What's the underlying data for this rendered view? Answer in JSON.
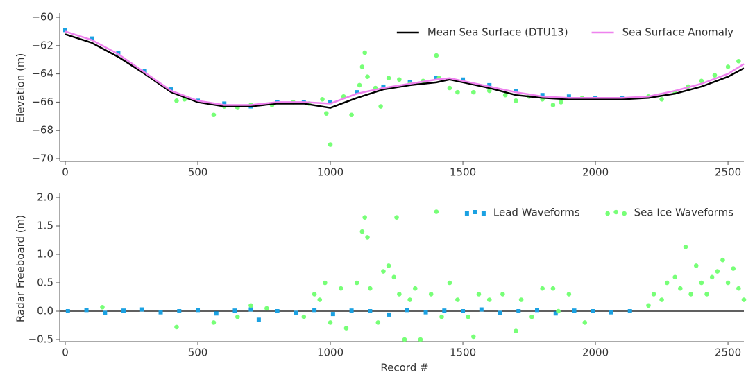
{
  "chart_data": [
    {
      "type": "combo",
      "ylabel": "Elevation (m)",
      "xlim": [
        0,
        2560
      ],
      "xticks": [
        0,
        500,
        1000,
        1500,
        2000,
        2500
      ],
      "ylim": [
        -70,
        -60
      ],
      "yticks": [
        {
          "value": -70,
          "label": "−70"
        },
        {
          "value": -68,
          "label": "−68"
        },
        {
          "value": -66,
          "label": "−66"
        },
        {
          "value": -64,
          "label": "−64"
        },
        {
          "value": -62,
          "label": "−62"
        },
        {
          "value": -60,
          "label": "−60"
        }
      ],
      "legend": "upper right",
      "series": [
        {
          "type": "scatter",
          "marker": "square",
          "color": "#1ba1e2",
          "x": [
            0,
            100,
            200,
            300,
            400,
            500,
            600,
            700,
            800,
            900,
            1000,
            1100,
            1200,
            1300,
            1400,
            1500,
            1600,
            1700,
            1800,
            1900,
            2000,
            2100
          ],
          "values": [
            -60.9,
            -61.5,
            -62.5,
            -63.8,
            -65.1,
            -65.9,
            -66.1,
            -66.3,
            -66.0,
            -66.0,
            -66.0,
            -65.3,
            -64.9,
            -64.6,
            -64.3,
            -64.4,
            -64.8,
            -65.2,
            -65.5,
            -65.6,
            -65.7,
            -65.7
          ]
        },
        {
          "type": "scatter",
          "marker": "circle",
          "color": "#77ff77",
          "x": [
            420,
            450,
            560,
            600,
            650,
            700,
            780,
            860,
            920,
            970,
            985,
            1000,
            1050,
            1080,
            1110,
            1120,
            1130,
            1140,
            1170,
            1190,
            1220,
            1260,
            1300,
            1350,
            1400,
            1410,
            1450,
            1480,
            1540,
            1600,
            1660,
            1700,
            1750,
            1800,
            1840,
            1870,
            1950,
            2200,
            2250,
            2300,
            2350,
            2400,
            2450,
            2500,
            2540
          ],
          "values": [
            -65.9,
            -65.8,
            -66.9,
            -66.3,
            -66.4,
            -66.2,
            -66.2,
            -66.0,
            -66.1,
            -65.8,
            -66.8,
            -69.0,
            -65.6,
            -66.9,
            -64.8,
            -63.5,
            -62.5,
            -64.2,
            -65.0,
            -66.3,
            -64.3,
            -64.4,
            -64.7,
            -64.5,
            -62.7,
            -64.3,
            -65.0,
            -65.3,
            -65.3,
            -65.2,
            -65.5,
            -65.9,
            -65.6,
            -65.8,
            -66.2,
            -66.0,
            -65.7,
            -65.6,
            -65.8,
            -65.3,
            -64.9,
            -64.5,
            -64.1,
            -63.5,
            -63.1
          ]
        },
        {
          "type": "line",
          "name": "Mean Sea Surface (DTU13)",
          "color": "#000000",
          "x": [
            0,
            100,
            200,
            300,
            400,
            500,
            600,
            700,
            800,
            900,
            1000,
            1100,
            1200,
            1300,
            1400,
            1450,
            1500,
            1600,
            1700,
            1800,
            1900,
            2000,
            2100,
            2200,
            2300,
            2400,
            2500,
            2560
          ],
          "values": [
            -61.2,
            -61.8,
            -62.8,
            -64.0,
            -65.3,
            -66.0,
            -66.3,
            -66.3,
            -66.1,
            -66.1,
            -66.4,
            -65.7,
            -65.1,
            -64.8,
            -64.6,
            -64.4,
            -64.6,
            -65.0,
            -65.5,
            -65.7,
            -65.8,
            -65.8,
            -65.8,
            -65.7,
            -65.4,
            -64.9,
            -64.2,
            -63.6
          ]
        },
        {
          "type": "line",
          "name": "Sea Surface Anomaly",
          "color": "#ee82ee",
          "x": [
            0,
            100,
            200,
            300,
            400,
            500,
            600,
            700,
            800,
            900,
            1000,
            1100,
            1200,
            1300,
            1400,
            1450,
            1500,
            1600,
            1700,
            1800,
            1900,
            2000,
            2100,
            2200,
            2300,
            2400,
            2500,
            2560
          ],
          "values": [
            -61.0,
            -61.6,
            -62.6,
            -63.9,
            -65.2,
            -65.9,
            -66.2,
            -66.2,
            -66.0,
            -66.0,
            -66.1,
            -65.4,
            -65.0,
            -64.7,
            -64.4,
            -64.3,
            -64.5,
            -64.9,
            -65.3,
            -65.6,
            -65.7,
            -65.7,
            -65.7,
            -65.6,
            -65.2,
            -64.7,
            -64.0,
            -63.3
          ]
        }
      ]
    },
    {
      "type": "combo",
      "ylabel": "Radar Freeboard (m)",
      "xlabel": "Record #",
      "xlim": [
        0,
        2560
      ],
      "xticks": [
        0,
        500,
        1000,
        1500,
        2000,
        2500
      ],
      "ylim": [
        -0.5,
        2.0
      ],
      "yticks": [
        {
          "value": -0.5,
          "label": "−0.5"
        },
        {
          "value": 0,
          "label": "0.0"
        },
        0.5,
        {
          "value": 1,
          "label": "1.0"
        },
        1.5,
        {
          "value": 2,
          "label": "2.0"
        }
      ],
      "hline": 0,
      "legend": "upper right",
      "series": [
        {
          "type": "scatter",
          "marker": "square",
          "name": "Lead Waveforms",
          "color": "#1ba1e2",
          "x": [
            10,
            80,
            150,
            220,
            290,
            360,
            430,
            500,
            570,
            640,
            700,
            730,
            800,
            870,
            940,
            1010,
            1080,
            1150,
            1220,
            1290,
            1360,
            1430,
            1500,
            1570,
            1640,
            1710,
            1780,
            1850,
            1920,
            1990,
            2060,
            2130
          ],
          "values": [
            0.0,
            0.02,
            -0.03,
            0.01,
            0.03,
            -0.02,
            0.0,
            0.02,
            -0.04,
            0.01,
            0.03,
            -0.15,
            0.0,
            -0.03,
            0.02,
            -0.05,
            0.01,
            0.0,
            -0.06,
            0.02,
            -0.02,
            0.01,
            0.0,
            0.03,
            -0.03,
            0.0,
            0.02,
            -0.04,
            0.01,
            0.0,
            -0.02,
            0.0
          ]
        },
        {
          "type": "scatter",
          "marker": "circle",
          "name": "Sea Ice Waveforms",
          "color": "#77ff77",
          "x": [
            140,
            420,
            560,
            650,
            700,
            760,
            900,
            940,
            960,
            980,
            1000,
            1040,
            1060,
            1100,
            1120,
            1130,
            1140,
            1150,
            1180,
            1200,
            1220,
            1240,
            1250,
            1260,
            1280,
            1300,
            1320,
            1340,
            1380,
            1400,
            1420,
            1450,
            1480,
            1520,
            1540,
            1560,
            1600,
            1650,
            1700,
            1720,
            1760,
            1800,
            1840,
            1860,
            1900,
            1960,
            2200,
            2220,
            2250,
            2270,
            2300,
            2320,
            2340,
            2360,
            2380,
            2400,
            2420,
            2440,
            2460,
            2480,
            2500,
            2520,
            2540,
            2560
          ],
          "values": [
            0.07,
            -0.28,
            -0.2,
            -0.1,
            0.1,
            0.05,
            -0.1,
            0.3,
            0.2,
            0.5,
            -0.2,
            0.4,
            -0.3,
            0.5,
            1.4,
            1.65,
            1.3,
            0.4,
            -0.2,
            0.7,
            0.8,
            0.6,
            1.65,
            0.3,
            -0.5,
            0.2,
            0.4,
            -0.5,
            0.3,
            1.75,
            -0.1,
            0.5,
            0.2,
            -0.1,
            -0.45,
            0.3,
            0.2,
            0.3,
            -0.35,
            0.2,
            -0.1,
            0.4,
            0.4,
            0.0,
            0.3,
            -0.2,
            0.1,
            0.3,
            0.2,
            0.5,
            0.6,
            0.4,
            1.13,
            0.3,
            0.8,
            0.5,
            0.3,
            0.6,
            0.7,
            0.9,
            0.5,
            0.75,
            0.4,
            0.2
          ]
        }
      ]
    }
  ]
}
